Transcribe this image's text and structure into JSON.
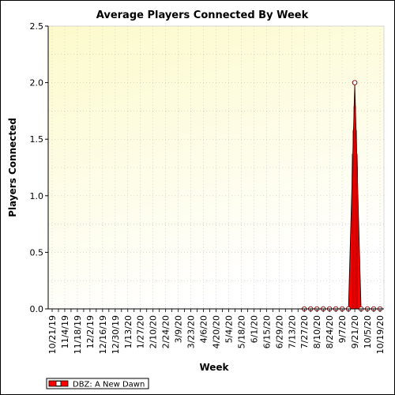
{
  "chart_data": {
    "type": "area",
    "title": "Average Players Connected By Week",
    "xlabel": "Week",
    "ylabel": "Players Connected",
    "ylim": [
      0,
      2.5
    ],
    "y_ticks": [
      "0.0",
      "0.5",
      "1.0",
      "1.5",
      "2.0",
      "2.5"
    ],
    "x_tick_labels": [
      "10/21/19",
      "11/4/19",
      "11/18/19",
      "12/2/19",
      "12/16/19",
      "12/30/19",
      "1/13/20",
      "1/27/20",
      "2/10/20",
      "2/24/20",
      "3/9/20",
      "3/23/20",
      "4/6/20",
      "4/20/20",
      "5/4/20",
      "5/18/20",
      "6/1/20",
      "6/15/20",
      "6/29/20",
      "7/13/20",
      "7/27/20",
      "8/10/20",
      "8/24/20",
      "9/7/20",
      "9/21/20",
      "10/5/20",
      "10/19/20"
    ],
    "x": [
      "10/21/19",
      "10/28/19",
      "11/4/19",
      "11/11/19",
      "11/18/19",
      "11/25/19",
      "12/2/19",
      "12/9/19",
      "12/16/19",
      "12/23/19",
      "12/30/19",
      "1/6/20",
      "1/13/20",
      "1/20/20",
      "1/27/20",
      "2/3/20",
      "2/10/20",
      "2/17/20",
      "2/24/20",
      "3/2/20",
      "3/9/20",
      "3/16/20",
      "3/23/20",
      "3/30/20",
      "4/6/20",
      "4/13/20",
      "4/20/20",
      "4/27/20",
      "5/4/20",
      "5/11/20",
      "5/18/20",
      "5/25/20",
      "6/1/20",
      "6/8/20",
      "6/15/20",
      "6/22/20",
      "6/29/20",
      "7/6/20",
      "7/13/20",
      "7/20/20",
      "7/27/20",
      "8/3/20",
      "8/10/20",
      "8/17/20",
      "8/24/20",
      "8/31/20",
      "9/7/20",
      "9/14/20",
      "9/21/20",
      "9/28/20",
      "10/5/20",
      "10/12/20",
      "10/19/20"
    ],
    "series": [
      {
        "name": "DBZ: A New Dawn",
        "color": "#ff0000",
        "first_marked_index": 40,
        "values": [
          0,
          0,
          0,
          0,
          0,
          0,
          0,
          0,
          0,
          0,
          0,
          0,
          0,
          0,
          0,
          0,
          0,
          0,
          0,
          0,
          0,
          0,
          0,
          0,
          0,
          0,
          0,
          0,
          0,
          0,
          0,
          0,
          0,
          0,
          0,
          0,
          0,
          0,
          0,
          0,
          0,
          0,
          0,
          0,
          0,
          0,
          0,
          0,
          2,
          0,
          0,
          0,
          0
        ]
      }
    ],
    "legend": "bottom-left",
    "grid": true
  },
  "colors": {
    "plot_bg_top": "#fdfbd6",
    "plot_bg_bottom": "#ffffff",
    "grid": "#c8c8a0",
    "series": "#ff0000"
  }
}
